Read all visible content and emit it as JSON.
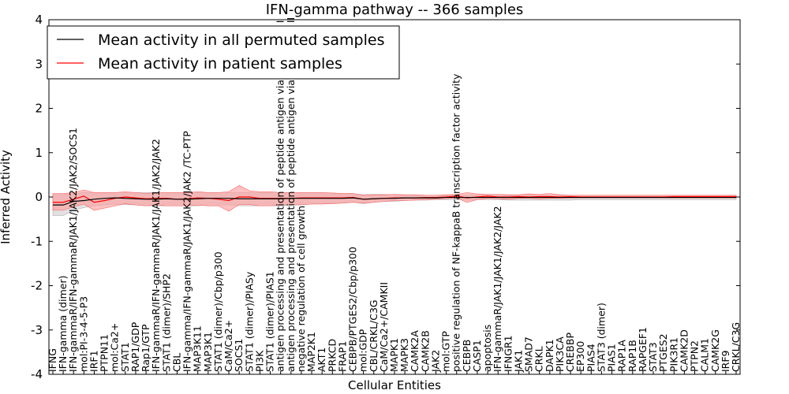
{
  "chart_data": {
    "type": "line",
    "title": "IFN-gamma pathway -- 366 samples",
    "xlabel": "Cellular Entities",
    "ylabel": "Inferred Activity",
    "ylim": [
      -4,
      4
    ],
    "yticks": [
      -4,
      -3,
      -2,
      -1,
      0,
      1,
      2,
      3,
      4
    ],
    "legend_location": "top-left",
    "colors": {
      "permuted": "#000000",
      "patient": "#ff0000",
      "patient_band": "#ff9a9a",
      "permuted_band": "#c8c8c8"
    },
    "categories": [
      "IFNG",
      "IFN-gamma (dimer)",
      "IFN-gammaR/IFN-gammaR/JAK1/JAK2/JAK2/SOCS1",
      "mol:PI-3-4-5-P3",
      "IRF1",
      "PTPN11",
      "mol:Ca2+",
      "STAT1",
      "RAP1/GDP",
      "Rap1/GTP",
      "IFN-gammaR/IFN-gammaR/JAK1/JAK1/JAK2/JAK2",
      "STAT1 (dimer)/SHP2",
      "CBL",
      "IFN-gamma/IFN-gammaR/JAK1/JAK2/JAK2  /TC-PTP",
      "MAP3K11",
      "MAP3K1",
      "STAT1 (dimer)/Cbp/p300",
      "CaM/Ca2+",
      "SOCS1",
      "STAT1 (dimer)/PIASy",
      "PI3K",
      "STAT1 (dimer)/PIAS1",
      "antigen processing and presentation of peptide antigen via MHC class I",
      "antigen processing and presentation of peptide antigen via MHC class II",
      "negative regulation of cell growth",
      "MAP2K1",
      "AKT1",
      "PRKCD",
      "FRAP1",
      "CEBPB/PTGES2/Cbp/p300",
      "mol:GDP",
      "CBL/CRKL/C3G",
      "CaM/Ca2+/CAMKII",
      "MAPK1",
      "MAPK3",
      "CAMK2A",
      "CAMK2B",
      "JAK2",
      "mol:GTP",
      "positive regulation of NF-kappaB transcription factor activity",
      "CEBPB",
      "CASP1",
      "apoptosis",
      "IFN-gammaR/JAK1/JAK1/JAK2/JAK2",
      "IFNGR1",
      "JAK1",
      "SMAD7",
      "CRKL",
      "DAPK1",
      "PIK3CA",
      "CREBBP",
      "EP300",
      "PIAS4",
      "STAT3 (dimer)",
      "PIAS1",
      "RAP1A",
      "RAP1B",
      "RAPGEF1",
      "STAT3",
      "PTGES2",
      "PIK3R1",
      "CAMK2D",
      "PTPN2",
      "CALM1",
      "CAMK2G",
      "IRF9",
      "CRKL/C3G"
    ],
    "series": [
      {
        "name": "Mean activity in all permuted samples",
        "mean": [
          -0.18,
          -0.18,
          -0.1,
          -0.08,
          -0.05,
          -0.03,
          -0.02,
          -0.03,
          -0.04,
          -0.05,
          -0.05,
          -0.04,
          -0.05,
          -0.05,
          -0.04,
          -0.03,
          -0.03,
          -0.03,
          -0.04,
          -0.04,
          -0.04,
          -0.04,
          -0.04,
          -0.03,
          -0.03,
          -0.03,
          -0.03,
          -0.03,
          -0.03,
          -0.02,
          -0.05,
          -0.04,
          -0.03,
          -0.03,
          -0.02,
          -0.02,
          -0.02,
          -0.02,
          -0.01,
          -0.01,
          -0.01,
          -0.01,
          -0.01,
          -0.01,
          -0.01,
          -0.01,
          -0.01,
          -0.01,
          -0.01,
          -0.01,
          -0.01,
          -0.01,
          -0.01,
          -0.01,
          -0.01,
          -0.01,
          -0.01,
          -0.01,
          -0.01,
          -0.01,
          -0.01,
          -0.01,
          -0.01,
          -0.01,
          -0.01,
          -0.01,
          -0.01
        ],
        "lower": [
          -0.42,
          -0.42,
          -0.3,
          -0.24,
          -0.2,
          -0.18,
          -0.16,
          -0.17,
          -0.18,
          -0.2,
          -0.2,
          -0.2,
          -0.2,
          -0.2,
          -0.2,
          -0.18,
          -0.18,
          -0.18,
          -0.2,
          -0.2,
          -0.2,
          -0.2,
          -0.2,
          -0.18,
          -0.17,
          -0.16,
          -0.15,
          -0.14,
          -0.13,
          -0.12,
          -0.15,
          -0.12,
          -0.1,
          -0.1,
          -0.08,
          -0.07,
          -0.07,
          -0.06,
          -0.06,
          -0.06,
          -0.06,
          -0.06,
          -0.06,
          -0.06,
          -0.07,
          -0.07,
          -0.07,
          -0.07,
          -0.07,
          -0.07,
          -0.07,
          -0.06,
          -0.06,
          -0.06,
          -0.06,
          -0.06,
          -0.06,
          -0.06,
          -0.06,
          -0.06,
          -0.06,
          -0.06,
          -0.06,
          -0.06,
          -0.06,
          -0.06,
          -0.06
        ],
        "upper": [
          0.06,
          0.06,
          0.08,
          0.1,
          0.1,
          0.1,
          0.1,
          0.1,
          0.1,
          0.1,
          0.1,
          0.1,
          0.1,
          0.1,
          0.1,
          0.1,
          0.1,
          0.1,
          0.1,
          0.1,
          0.1,
          0.1,
          0.1,
          0.1,
          0.1,
          0.1,
          0.1,
          0.09,
          0.08,
          0.08,
          0.05,
          0.06,
          0.06,
          0.05,
          0.05,
          0.05,
          0.04,
          0.04,
          0.04,
          0.04,
          0.04,
          0.04,
          0.04,
          0.04,
          0.04,
          0.04,
          0.04,
          0.04,
          0.04,
          0.04,
          0.04,
          0.04,
          0.04,
          0.04,
          0.04,
          0.04,
          0.04,
          0.04,
          0.04,
          0.04,
          0.04,
          0.04,
          0.04,
          0.04,
          0.04,
          0.04,
          0.04
        ]
      },
      {
        "name": "Mean activity in patient samples",
        "mean": [
          -0.12,
          -0.12,
          -0.05,
          0.02,
          -0.12,
          -0.08,
          -0.03,
          0,
          -0.02,
          -0.04,
          -0.03,
          -0.03,
          -0.05,
          -0.04,
          -0.02,
          -0.03,
          -0.05,
          -0.08,
          0,
          0,
          -0.03,
          -0.03,
          -0.03,
          -0.03,
          -0.02,
          -0.02,
          -0.02,
          -0.02,
          -0.02,
          -0.01,
          -0.05,
          -0.04,
          -0.03,
          -0.02,
          -0.02,
          -0.02,
          -0.01,
          -0.01,
          0,
          0.02,
          -0.02,
          0,
          0.02,
          0,
          0,
          0.01,
          0,
          0.01,
          0.01,
          0,
          0.01,
          0,
          0,
          0,
          0,
          0,
          0,
          0,
          0,
          0,
          0.01,
          0.01,
          0.01,
          0.01,
          0.01,
          0.01,
          0.01
        ],
        "lower": [
          -0.3,
          -0.3,
          -0.22,
          -0.16,
          -0.3,
          -0.25,
          -0.2,
          -0.15,
          -0.18,
          -0.2,
          -0.18,
          -0.2,
          -0.2,
          -0.2,
          -0.18,
          -0.2,
          -0.2,
          -0.32,
          -0.17,
          -0.17,
          -0.2,
          -0.2,
          -0.18,
          -0.18,
          -0.18,
          -0.16,
          -0.16,
          -0.15,
          -0.14,
          -0.12,
          -0.14,
          -0.12,
          -0.1,
          -0.08,
          -0.08,
          -0.07,
          -0.06,
          -0.05,
          -0.04,
          -0.02,
          -0.12,
          -0.06,
          -0.03,
          -0.04,
          -0.05,
          -0.03,
          -0.03,
          -0.04,
          -0.03,
          -0.03,
          -0.02,
          -0.02,
          -0.02,
          -0.02,
          -0.02,
          -0.02,
          -0.02,
          -0.02,
          -0.02,
          -0.02,
          -0.02,
          -0.02,
          -0.02,
          -0.02,
          -0.02,
          -0.02,
          -0.02
        ],
        "upper": [
          0.08,
          0.08,
          0.1,
          0.16,
          0.1,
          0.1,
          0.1,
          0.12,
          0.1,
          0.08,
          0.1,
          0.1,
          0.1,
          0.1,
          0.12,
          0.1,
          0.1,
          0.12,
          0.26,
          0.14,
          0.12,
          0.12,
          0.1,
          0.1,
          0.1,
          0.1,
          0.1,
          0.09,
          0.08,
          0.08,
          0.04,
          0.05,
          0.05,
          0.06,
          0.05,
          0.05,
          0.04,
          0.04,
          0.05,
          0.06,
          0.1,
          0.07,
          0.06,
          0.06,
          0.05,
          0.05,
          0.07,
          0.06,
          0.08,
          0.05,
          0.04,
          0.04,
          0.04,
          0.04,
          0.04,
          0.04,
          0.04,
          0.04,
          0.04,
          0.04,
          0.04,
          0.04,
          0.04,
          0.04,
          0.04,
          0.04,
          0.04
        ]
      }
    ]
  }
}
